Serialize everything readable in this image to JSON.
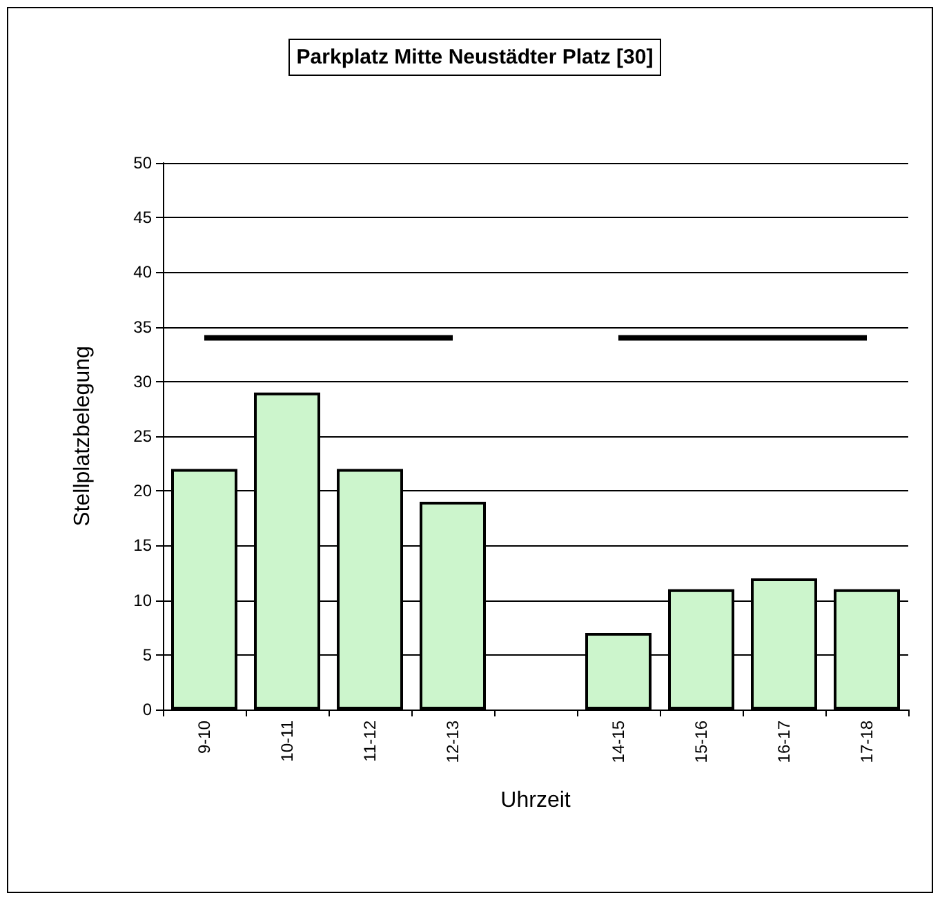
{
  "chart_data": {
    "type": "bar",
    "title": "Parkplatz Mitte Neustädter Platz [30]",
    "xlabel": "Uhrzeit",
    "ylabel": "Stellplatzbelegung",
    "categories": [
      "9-10",
      "10-11",
      "11-12",
      "12-13",
      null,
      "14-15",
      "15-16",
      "16-17",
      "17-18"
    ],
    "series": [
      {
        "color": "#ccf5cc",
        "values": [
          22,
          29,
          22,
          19,
          null,
          7,
          11,
          12,
          11
        ]
      },
      {
        "type": "line",
        "color": "#000000",
        "values": [
          34,
          34,
          34,
          34,
          null,
          34,
          34,
          34,
          34
        ]
      }
    ],
    "ylim": [
      0,
      50
    ],
    "yticks": [
      0,
      5,
      10,
      15,
      20,
      25,
      30,
      35,
      40,
      45,
      50
    ],
    "grid": "y",
    "marker": "none",
    "line_style": "solid"
  }
}
